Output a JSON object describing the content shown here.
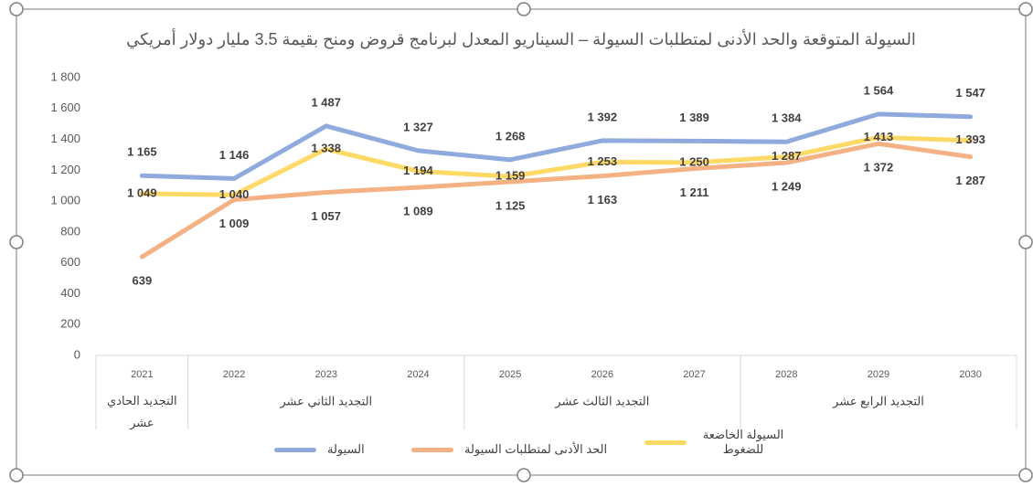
{
  "chart_data": {
    "type": "line",
    "title": "السيولة المتوقعة والحد الأدنى لمتطلبات السيولة – السيناريو المعدل لبرنامج قروض ومنح بقيمة 3.5 مليار دولار أمريكي",
    "categories": [
      "2021",
      "2022",
      "2023",
      "2024",
      "2025",
      "2026",
      "2027",
      "2028",
      "2029",
      "2030"
    ],
    "groups": [
      {
        "label": "التجديد الحادي عشر",
        "span": 1
      },
      {
        "label": "التجديد الثاني عشر",
        "span": 3
      },
      {
        "label": "التجديد الثالث عشر",
        "span": 3
      },
      {
        "label": "التجديد الرابع عشر",
        "span": 3
      }
    ],
    "series": [
      {
        "name": "السيولة",
        "color": "#8faadc",
        "values": [
          1165,
          1146,
          1487,
          1327,
          1268,
          1392,
          1389,
          1384,
          1564,
          1547
        ],
        "value_labels": [
          "1 165",
          "1 146",
          "1 487",
          "1 327",
          "1 268",
          "1 392",
          "1 389",
          "1 384",
          "1 564",
          "1 547"
        ]
      },
      {
        "name": "الحد الأدنى لمتطلبات السيولة",
        "color": "#f4b183",
        "values": [
          639,
          1009,
          1057,
          1089,
          1125,
          1163,
          1211,
          1249,
          1372,
          1287
        ],
        "value_labels": [
          "639",
          "1 009",
          "1 057",
          "1 089",
          "1 125",
          "1 163",
          "1 211",
          "1 249",
          "1 372",
          "1 287"
        ]
      },
      {
        "name": "السيولة الخاضعة للضغوط",
        "color": "#ffd966",
        "values": [
          1049,
          1040,
          1338,
          1194,
          1159,
          1253,
          1250,
          1287,
          1413,
          1393
        ],
        "value_labels": [
          "1 049",
          "1 040",
          "1 338",
          "1 194",
          "1 159",
          "1 253",
          "1 250",
          "1 287",
          "1 413",
          "1 393"
        ]
      }
    ],
    "ylim": [
      0,
      1800
    ],
    "yticks": [
      0,
      200,
      400,
      600,
      800,
      {
        "value": 1000,
        "label": "1 000"
      },
      {
        "value": 1200,
        "label": "1 200"
      },
      {
        "value": 1400,
        "label": "1 400"
      },
      {
        "value": 1600,
        "label": "1 600"
      },
      {
        "value": 1800,
        "label": "1 800"
      }
    ],
    "grid": false,
    "legend": "bottom"
  }
}
